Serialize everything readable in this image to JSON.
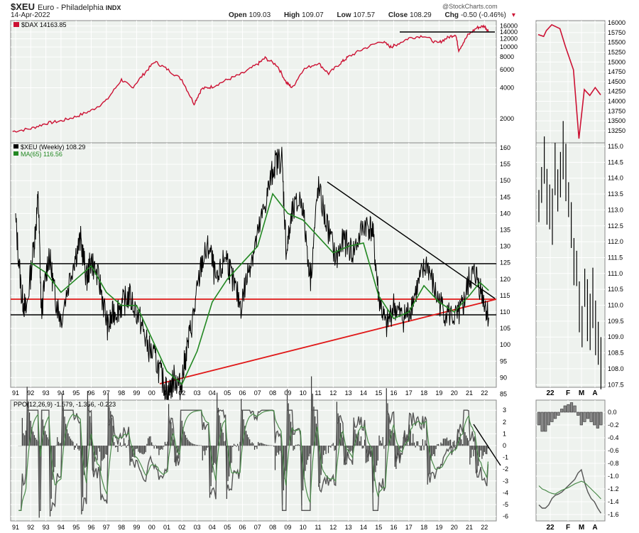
{
  "header": {
    "symbol": "$XEU",
    "name": "Euro - Philadelphia",
    "exchange": "INDX",
    "date": "14-Apr-2022",
    "open_label": "Open",
    "open": "109.03",
    "high_label": "High",
    "high": "109.07",
    "low_label": "Low",
    "low": "107.57",
    "close_label": "Close",
    "close": "108.29",
    "chg_label": "Chg",
    "chg": "-0.50 (-0.46%)",
    "watermark": "@StockCharts.com"
  },
  "colors": {
    "dax": "#cc1133",
    "price": "#000000",
    "ma": "#228822",
    "red_line": "#e01818",
    "panel_bg": "#eef2ee",
    "grid": "#ffffff"
  },
  "chart_data": [
    {
      "type": "line",
      "legend": "$DAX 14163.85",
      "scale": "log",
      "y_ticks": [
        "16000",
        "14000",
        "12000",
        "10000",
        "8000",
        "6000",
        "4000",
        "2000"
      ],
      "x": [
        1990.8,
        1992,
        1993,
        1994,
        1995,
        1996,
        1997,
        1998,
        1998.7,
        1999.5,
        2000.2,
        2001,
        2002,
        2002.8,
        2003.3,
        2004,
        2005,
        2006,
        2007,
        2007.5,
        2008.3,
        2008.9,
        2009.3,
        2010,
        2011,
        2011.7,
        2012.5,
        2013,
        2014,
        2015.2,
        2015.8,
        2016.1,
        2017,
        2018,
        2018.9,
        2019.5,
        2020.1,
        2020.3,
        2020.9,
        2021.5,
        2022.0,
        2022.28
      ],
      "values": [
        1500,
        1600,
        1800,
        1900,
        2100,
        2400,
        3000,
        4800,
        4000,
        5500,
        7200,
        6100,
        4800,
        2800,
        3900,
        4100,
        4800,
        5500,
        6800,
        7800,
        6600,
        4500,
        4000,
        6000,
        7000,
        5500,
        7000,
        8000,
        9600,
        11400,
        10000,
        10400,
        12200,
        12900,
        10800,
        12200,
        13300,
        9300,
        13000,
        15400,
        16000,
        14163.85
      ]
    },
    {
      "type": "line",
      "legend": "$DAX 14163.85",
      "y_ticks": [
        "16000",
        "15750",
        "15500",
        "15250",
        "15000",
        "14750",
        "14500",
        "14250",
        "14000",
        "13750",
        "13500",
        "13250"
      ],
      "x_ticks": [
        "22",
        "F",
        "M",
        "A"
      ],
      "x": [
        0,
        2,
        3,
        5,
        8,
        10,
        13,
        15,
        17,
        19,
        21,
        23
      ],
      "values": [
        15700,
        15650,
        15800,
        15950,
        15850,
        15400,
        14800,
        13050,
        14300,
        14150,
        14350,
        14163.85
      ]
    },
    {
      "type": "line",
      "legend": [
        "$XEU (Weekly) 108.29",
        "MA(65) 116.56"
      ],
      "y_ticks": [
        "160",
        "155",
        "150",
        "145",
        "140",
        "135",
        "130",
        "125",
        "120",
        "115",
        "110",
        "105",
        "100",
        "95",
        "90",
        "85"
      ],
      "x_ticks": [
        "91",
        "92",
        "93",
        "94",
        "95",
        "96",
        "97",
        "98",
        "99",
        "00",
        "01",
        "02",
        "03",
        "04",
        "05",
        "06",
        "07",
        "08",
        "09",
        "10",
        "11",
        "12",
        "13",
        "14",
        "15",
        "16",
        "17",
        "18",
        "19",
        "20",
        "21",
        "22"
      ],
      "series": [
        {
          "name": "$XEU (Weekly) 108.29",
          "x": [
            1991,
            1991.4,
            1991.7,
            1992.2,
            1992.5,
            1992.7,
            1993.2,
            1993.6,
            1994,
            1994.8,
            1995.3,
            1995.7,
            1996,
            1996.6,
            1997.1,
            1997.5,
            1998,
            1998.5,
            1999.2,
            1999.7,
            2000.3,
            2000.8,
            2001.1,
            2001.5,
            2001.9,
            2002.3,
            2002.8,
            2003.3,
            2003.8,
            2004.3,
            2004.9,
            2005.3,
            2005.9,
            2006.5,
            2007,
            2007.6,
            2008.1,
            2008.6,
            2008.9,
            2009.3,
            2009.9,
            2010.5,
            2011,
            2011.5,
            2012.2,
            2012.7,
            2013.3,
            2014.1,
            2014.6,
            2015,
            2015.5,
            2016,
            2016.6,
            2017,
            2017.6,
            2018.2,
            2018.8,
            2019.4,
            2020.2,
            2020.6,
            2021,
            2021.4,
            2021.9,
            2022.28
          ],
          "values": [
            138,
            115,
            110,
            130,
            145,
            110,
            128,
            115,
            108,
            125,
            132,
            120,
            126,
            118,
            105,
            110,
            112,
            115,
            108,
            100,
            95,
            88,
            85,
            90,
            87,
            98,
            110,
            125,
            130,
            118,
            128,
            120,
            112,
            125,
            133,
            145,
            155,
            157,
            128,
            140,
            145,
            120,
            148,
            138,
            126,
            132,
            128,
            137,
            135,
            115,
            105,
            112,
            108,
            110,
            118,
            125,
            115,
            110,
            108,
            112,
            120,
            122,
            115,
            108.29
          ]
        },
        {
          "name": "MA(65) 116.56",
          "x": [
            1992,
            1993,
            1994,
            1995,
            1996,
            1997,
            1998,
            1999,
            2000,
            2001,
            2002,
            2003,
            2004,
            2005,
            2006,
            2007,
            2008,
            2009,
            2010,
            2011,
            2012,
            2013,
            2014,
            2015,
            2016,
            2017,
            2018,
            2019,
            2020,
            2021,
            2021.7,
            2022.28
          ],
          "values": [
            125,
            122,
            116,
            120,
            124,
            116,
            112,
            112,
            102,
            92,
            88,
            98,
            113,
            120,
            125,
            130,
            146,
            140,
            138,
            133,
            128,
            130,
            131,
            115,
            108,
            110,
            118,
            113,
            110,
            115,
            119,
            116.56
          ]
        }
      ]
    },
    {
      "type": "line",
      "legend": "$XEU 108.29",
      "y_ticks": [
        "115.0",
        "114.5",
        "114.0",
        "113.5",
        "113.0",
        "112.5",
        "112.0",
        "111.5",
        "111.0",
        "110.5",
        "110.0",
        "109.5",
        "109.0",
        "108.5",
        "108.0",
        "107.5"
      ],
      "x_ticks": [
        "22",
        "F",
        "M",
        "A"
      ],
      "x": [
        0,
        1,
        2,
        3,
        4,
        5,
        6,
        7,
        8,
        9,
        10,
        11,
        12,
        13,
        14,
        15,
        16,
        17,
        18,
        19,
        20,
        21,
        22,
        23
      ],
      "values": [
        113.2,
        113.8,
        114.5,
        113.6,
        112.9,
        113.0,
        114.3,
        113.7,
        113.9,
        114.8,
        114.1,
        113.3,
        112.4,
        111.6,
        111.3,
        110.2,
        109.4,
        110.5,
        109.9,
        109.6,
        110.3,
        109.2,
        108.8,
        108.29
      ]
    },
    {
      "type": "line",
      "legend": "PPO(12,26,9) -1.579, -1.356, -0.223",
      "y_ticks": [
        "3",
        "2",
        "1",
        "0",
        "-1",
        "-2",
        "-3",
        "-4",
        "-5",
        "-6"
      ],
      "x_ticks": [
        "91",
        "92",
        "93",
        "94",
        "95",
        "96",
        "97",
        "98",
        "99",
        "00",
        "01",
        "02",
        "03",
        "04",
        "05",
        "06",
        "07",
        "08",
        "09",
        "10",
        "11",
        "12",
        "13",
        "14",
        "15",
        "16",
        "17",
        "18",
        "19",
        "20",
        "21",
        "22"
      ],
      "series": [
        {
          "name": "PPO",
          "values": [
            -1.579
          ]
        },
        {
          "name": "Signal",
          "values": [
            -1.356
          ]
        },
        {
          "name": "Histogram",
          "values": [
            -0.223
          ]
        }
      ]
    },
    {
      "type": "line",
      "legend": "PPO(12,26,9)",
      "y_ticks": [
        "0.0",
        "-0.2",
        "-0.4",
        "-0.6",
        "-0.8",
        "-1.0",
        "-1.2",
        "-1.4",
        "-1.6"
      ],
      "x_ticks": [
        "22",
        "F",
        "M",
        "A"
      ],
      "histogram": [
        -0.2,
        -0.3,
        -0.3,
        -0.2,
        -0.15,
        -0.1,
        -0.05,
        0.05,
        0.1,
        0.12,
        0.15,
        0.1,
        -0.05,
        -0.2,
        -0.15,
        -0.1,
        -0.15,
        -0.2,
        -0.25,
        -0.2
      ],
      "ppo": [
        -1.45,
        -1.5,
        -1.5,
        -1.45,
        -1.35,
        -1.3,
        -1.28,
        -1.25,
        -1.2,
        -1.15,
        -1.1,
        -1.05,
        -0.95,
        -0.9,
        -1.1,
        -1.25,
        -1.35,
        -1.4,
        -1.5,
        -1.579
      ],
      "signal": [
        -1.15,
        -1.2,
        -1.22,
        -1.25,
        -1.27,
        -1.28,
        -1.25,
        -1.22,
        -1.2,
        -1.18,
        -1.15,
        -1.12,
        -1.1,
        -1.08,
        -1.1,
        -1.15,
        -1.2,
        -1.25,
        -1.3,
        -1.356
      ]
    }
  ]
}
